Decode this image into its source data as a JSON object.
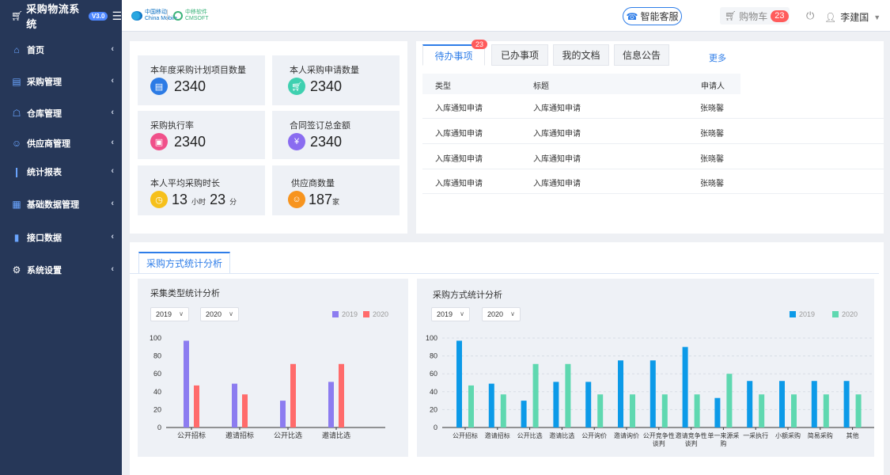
{
  "app": {
    "title": "采购物流系统",
    "version": "V3.0"
  },
  "logos": {
    "cmcc_line1": "中国移动",
    "cmcc_line2": "China Mobile",
    "cmsoft_line1": "中移软件",
    "cmsoft_line2": "CMSOFT"
  },
  "header": {
    "service_label": "智能客服",
    "cart_label": "购物车",
    "cart_count": "23",
    "user_name": "李建国"
  },
  "sidebar": {
    "items": [
      {
        "label": "首页",
        "icon": "home-icon"
      },
      {
        "label": "采购管理",
        "icon": "book-icon"
      },
      {
        "label": "仓库管理",
        "icon": "warehouse-icon"
      },
      {
        "label": "供应商管理",
        "icon": "users-icon"
      },
      {
        "label": "统计报表",
        "icon": "bar-chart-icon"
      },
      {
        "label": "基础数据管理",
        "icon": "database-icon"
      },
      {
        "label": "接口数据",
        "icon": "plug-icon"
      },
      {
        "label": "系统设置",
        "icon": "gear-icon"
      }
    ]
  },
  "stats": [
    {
      "label": "本年度采购计划项目数量",
      "value": "2340",
      "icon": "document-icon",
      "color": "#2c7be5"
    },
    {
      "label": "本人采购申请数量",
      "value": "2340",
      "icon": "cart-icon",
      "color": "#3fd0b0"
    },
    {
      "label": "采购执行率",
      "value": "2340",
      "icon": "clipboard-icon",
      "color": "#f0508a"
    },
    {
      "label": "合同签订总金额",
      "value": "2340",
      "icon": "yen-icon",
      "color": "#8a6cf0"
    },
    {
      "label": "本人平均采购时长",
      "hours": "13",
      "hours_unit": "小时",
      "minutes": "23",
      "minutes_unit": "分",
      "icon": "clock-icon",
      "color": "#f6c01b"
    },
    {
      "label": "供应商数量",
      "value": "187",
      "unit": "家",
      "icon": "people-icon",
      "color": "#f7941e"
    }
  ],
  "tasks": {
    "tabs": [
      "待办事项",
      "已办事项",
      "我的文档",
      "信息公告"
    ],
    "active_tab": "待办事项",
    "badge": "23",
    "more_label": "更多",
    "columns": [
      "类型",
      "标题",
      "申请人"
    ],
    "rows": [
      [
        "入库通知申请",
        "入库通知申请",
        "张晓馨"
      ],
      [
        "入库通知申请",
        "入库通知申请",
        "张晓馨"
      ],
      [
        "入库通知申请",
        "入库通知申请",
        "张晓馨"
      ],
      [
        "入库通知申请",
        "入库通知申请",
        "张晓馨"
      ]
    ]
  },
  "analysis": {
    "section_tab": "采购方式统计分析",
    "left": {
      "title": "采集类型统计分析",
      "year_a": "2019",
      "year_b": "2020"
    },
    "right": {
      "title": "采购方式统计分析",
      "year_a": "2019",
      "year_b": "2020"
    }
  },
  "chart_data": [
    {
      "type": "bar",
      "title": "采集类型统计分析",
      "categories": [
        "公开招标",
        "邀请招标",
        "公开比选",
        "邀请比选"
      ],
      "ylim": [
        0,
        100
      ],
      "yticks": [
        0,
        20,
        40,
        60,
        80,
        100
      ],
      "grid": false,
      "legend": "top-right",
      "series": [
        {
          "name": "2019",
          "color": "#8c7cf0",
          "values": [
            97,
            49,
            30,
            51
          ]
        },
        {
          "name": "2020",
          "color": "#ff6b6b",
          "values": [
            47,
            37,
            71,
            71
          ]
        }
      ]
    },
    {
      "type": "bar",
      "title": "采购方式统计分析",
      "categories": [
        "公开招标",
        "邀请招标",
        "公开比选",
        "邀请比选",
        "公开询价",
        "邀请询价",
        "公开竞争性谈判",
        "邀请竞争性谈判",
        "单一来源采购",
        "一采执行",
        "小额采购",
        "简易采购",
        "其他"
      ],
      "ylim": [
        0,
        100
      ],
      "yticks": [
        0,
        20,
        40,
        60,
        80,
        100
      ],
      "grid": true,
      "legend": "top-right",
      "series": [
        {
          "name": "2019",
          "color": "#0c9ae8",
          "values": [
            97,
            49,
            30,
            51,
            51,
            75,
            75,
            90,
            33,
            52,
            52,
            52,
            52
          ]
        },
        {
          "name": "2020",
          "color": "#5fd8b0",
          "values": [
            47,
            37,
            71,
            71,
            37,
            37,
            37,
            37,
            60,
            37,
            37,
            37,
            37
          ]
        }
      ]
    }
  ]
}
